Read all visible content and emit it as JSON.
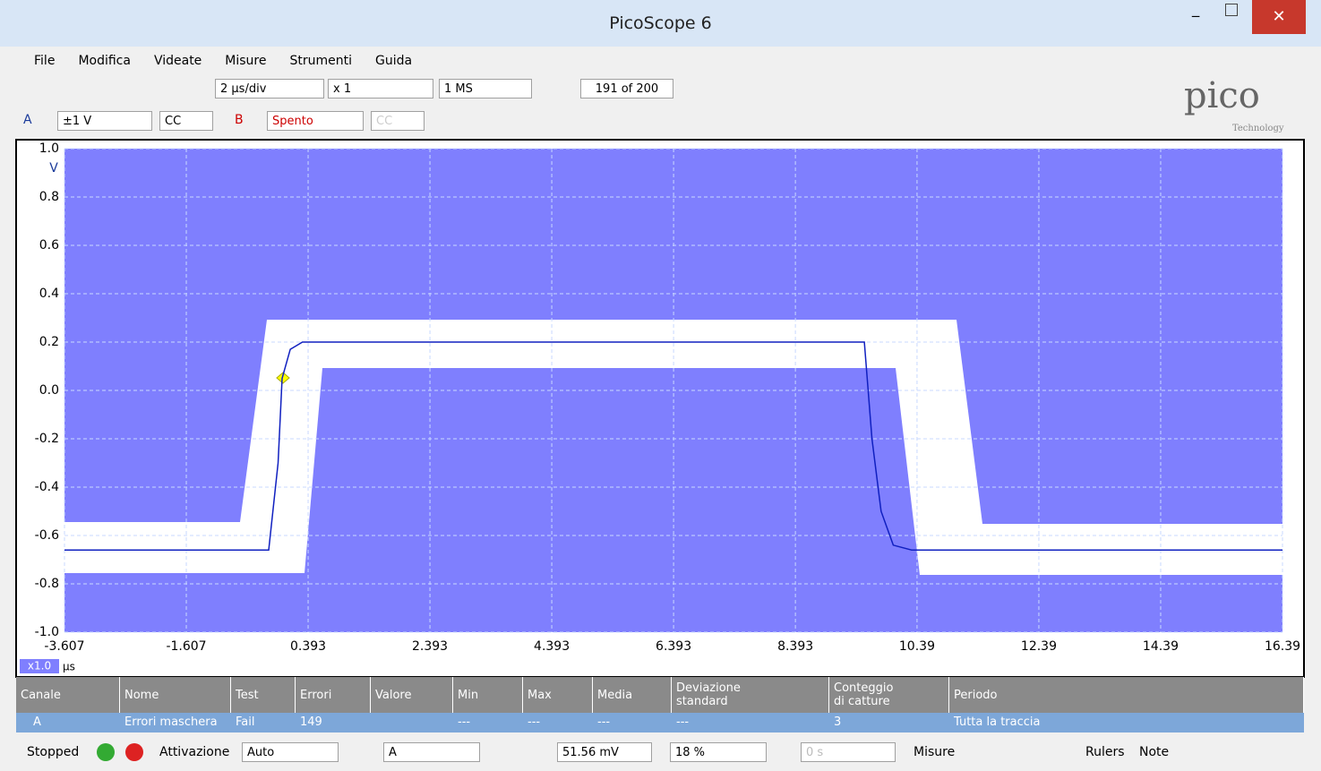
{
  "window": {
    "title": "PicoScope 6"
  },
  "menu": [
    "File",
    "Modifica",
    "Videate",
    "Misure",
    "Strumenti",
    "Guida"
  ],
  "toolbar": {
    "timebase": "2 µs/div",
    "zoom": "x 1",
    "samples": "1 MS",
    "buffer": "191 of 200"
  },
  "channels": {
    "a_label": "A",
    "a_range": "±1 V",
    "a_coupling": "CC",
    "b_label": "B",
    "b_range": "Spento",
    "b_coupling": "CC"
  },
  "logo": {
    "name": "pico",
    "sub": "Technology"
  },
  "plot": {
    "y_unit": "V",
    "x_unit": "µs",
    "x_scale": "x1.0",
    "xlim": [
      -3.607,
      16.39
    ],
    "ylim": [
      -1,
      1
    ],
    "xticks": [
      -3.607,
      -1.607,
      0.393,
      2.393,
      4.393,
      6.393,
      8.393,
      10.39,
      12.39,
      14.39,
      16.39
    ],
    "yticks": [
      {
        "value": 1,
        "label": "1.0"
      },
      0.8,
      0.6,
      0.4,
      0.2,
      {
        "value": 0,
        "label": "0.0"
      },
      -0.2,
      -0.4,
      -0.6,
      -0.8,
      {
        "value": -1,
        "label": "-1.0"
      }
    ],
    "trace": {
      "x": [
        -3.607,
        -0.254,
        -0.1,
        -0.034,
        0.1,
        0.3,
        9.525,
        9.65,
        9.8,
        10.0,
        10.3,
        16.39
      ],
      "y": [
        -0.66,
        -0.66,
        -0.3,
        0.05,
        0.17,
        0.2,
        0.2,
        -0.2,
        -0.5,
        -0.64,
        -0.66,
        -0.66
      ]
    }
  },
  "table": {
    "headers": [
      "Canale",
      "Nome",
      "Test",
      "Errori",
      "Valore",
      "Min",
      "Max",
      "Media",
      "Deviazione standard",
      "Conteggio di catture",
      "Periodo"
    ],
    "rows": [
      [
        "A",
        "Errori maschera",
        "Fail",
        "149",
        null,
        "---",
        "---",
        "---",
        "---",
        "3",
        "Tutta la traccia"
      ]
    ]
  },
  "status": {
    "state": "Stopped",
    "trigger_label": "Attivazione",
    "trigger_mode": "Auto",
    "trigger_channel": "A",
    "threshold": "51.56 mV",
    "pretrigger": "18 %",
    "delay": "0 s",
    "measures": "Misure",
    "rulers": "Rulers",
    "notes": "Note"
  }
}
